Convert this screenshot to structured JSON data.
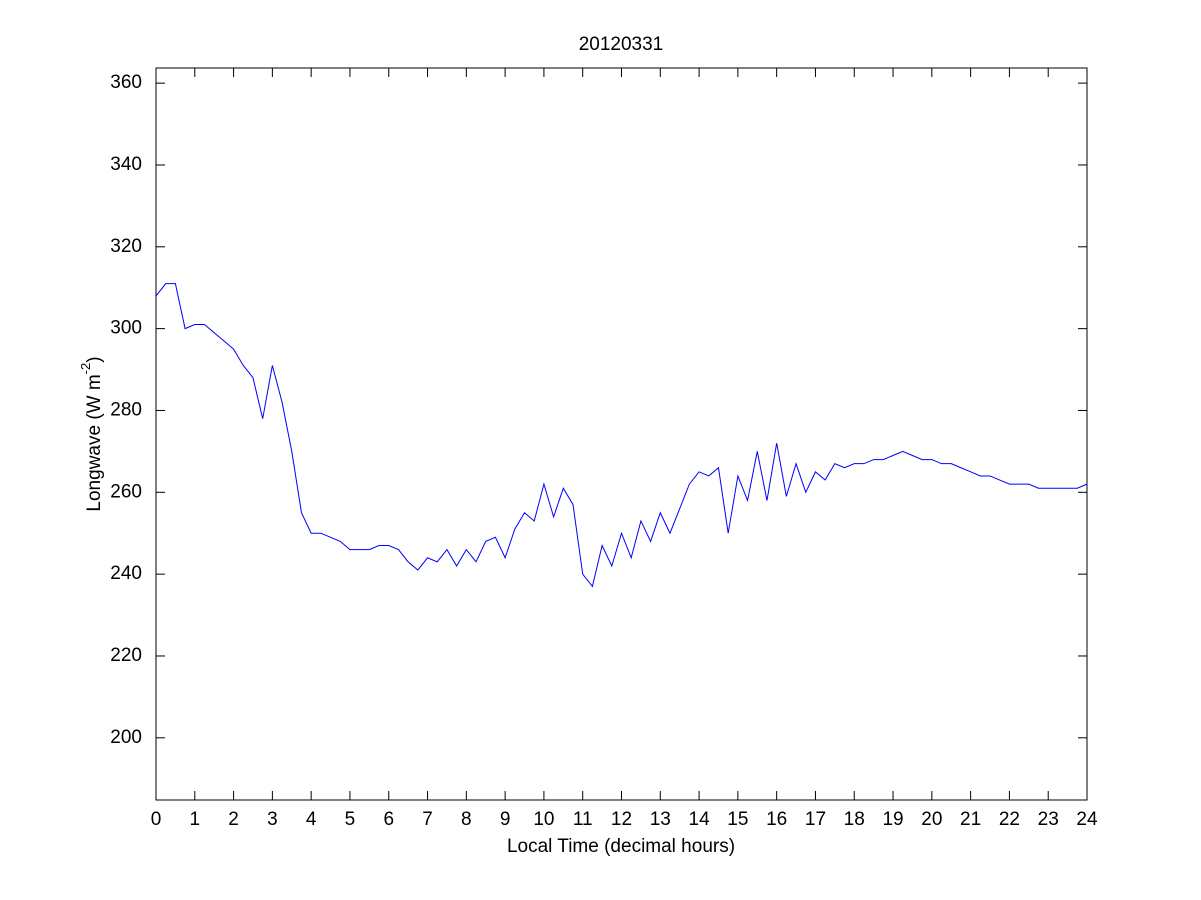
{
  "chart_data": {
    "type": "line",
    "title": "20120331",
    "x_label": "Local Time (decimal hours)",
    "y_label_parts": [
      "Longwave (W m",
      "-2",
      ")"
    ],
    "x": [
      0,
      0.25,
      0.5,
      0.75,
      1,
      1.25,
      1.5,
      1.75,
      2,
      2.25,
      2.5,
      2.75,
      3,
      3.25,
      3.5,
      3.75,
      4,
      4.25,
      4.5,
      4.75,
      5,
      5.25,
      5.5,
      5.75,
      6,
      6.25,
      6.5,
      6.75,
      7,
      7.25,
      7.5,
      7.75,
      8,
      8.25,
      8.5,
      8.75,
      9,
      9.25,
      9.5,
      9.75,
      10,
      10.25,
      10.5,
      10.75,
      11,
      11.25,
      11.5,
      11.75,
      12,
      12.25,
      12.5,
      12.75,
      13,
      13.25,
      13.5,
      13.75,
      14,
      14.25,
      14.5,
      14.75,
      15,
      15.25,
      15.5,
      15.75,
      16,
      16.25,
      16.5,
      16.75,
      17,
      17.25,
      17.5,
      17.75,
      18,
      18.25,
      18.5,
      18.75,
      19,
      19.25,
      19.5,
      19.75,
      20,
      20.25,
      20.5,
      20.75,
      21,
      21.25,
      21.5,
      21.75,
      22,
      22.25,
      22.5,
      22.75,
      23,
      23.25,
      23.5,
      23.75,
      24
    ],
    "series": [
      {
        "name": "Longwave",
        "color": "#0000ff",
        "values": [
          308,
          311,
          311,
          300,
          301,
          301,
          299,
          297,
          295,
          291,
          288,
          278,
          291,
          282,
          270,
          255,
          250,
          250,
          249,
          248,
          246,
          246,
          246,
          247,
          247,
          246,
          243,
          241,
          244,
          243,
          246,
          242,
          246,
          243,
          248,
          249,
          244,
          251,
          255,
          253,
          262,
          254,
          261,
          257,
          240,
          237,
          247,
          242,
          250,
          244,
          253,
          248,
          255,
          250,
          256,
          262,
          265,
          264,
          266,
          250,
          264,
          258,
          270,
          258,
          272,
          259,
          267,
          260,
          265,
          263,
          267,
          266,
          267,
          267,
          268,
          268,
          269,
          270,
          269,
          268,
          268,
          267,
          267,
          266,
          265,
          264,
          264,
          263,
          262,
          262,
          262,
          261,
          261,
          261,
          261,
          261,
          262
        ]
      }
    ],
    "xlim": [
      0,
      24
    ],
    "xticks": [
      0,
      1,
      2,
      3,
      4,
      5,
      6,
      7,
      8,
      9,
      10,
      11,
      12,
      13,
      14,
      15,
      16,
      17,
      18,
      19,
      20,
      21,
      22,
      23,
      24
    ],
    "ylim": [
      184.8,
      363.7
    ],
    "yticks": [
      200,
      220,
      240,
      260,
      280,
      300,
      320,
      340,
      360
    ],
    "grid": false
  }
}
